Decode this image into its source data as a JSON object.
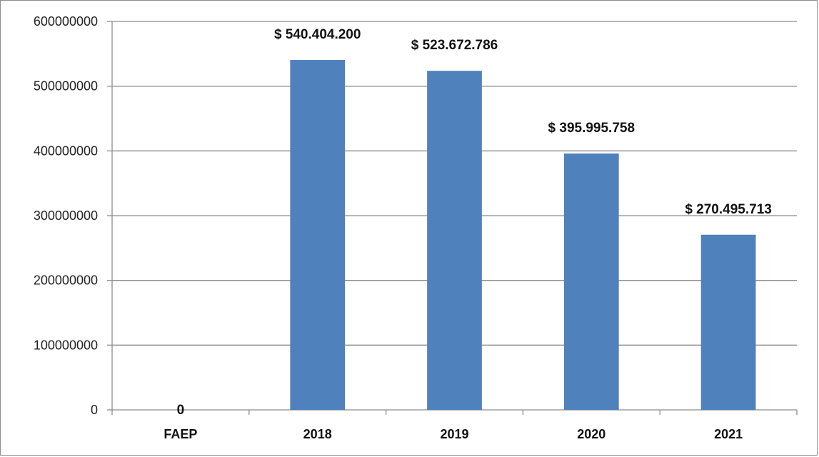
{
  "chart_data": {
    "type": "bar",
    "title": "",
    "xlabel": "",
    "ylabel": "",
    "categories": [
      "FAEP",
      "2018",
      "2019",
      "2020",
      "2021"
    ],
    "values": [
      0,
      540404200,
      523672786,
      395995758,
      270495713
    ],
    "data_labels": [
      "0",
      "$ 540.404.200",
      "$ 523.672.786",
      "$ 395.995.758",
      "$ 270.495.713"
    ],
    "ylim": [
      0,
      600000000
    ],
    "yticks": [
      0,
      100000000,
      200000000,
      300000000,
      400000000,
      500000000,
      600000000
    ],
    "ytick_labels": [
      "0",
      "100000000",
      "200000000",
      "300000000",
      "400000000",
      "500000000",
      "600000000"
    ],
    "grid": true,
    "legend": "none",
    "bar_color": "#4f81bd"
  }
}
